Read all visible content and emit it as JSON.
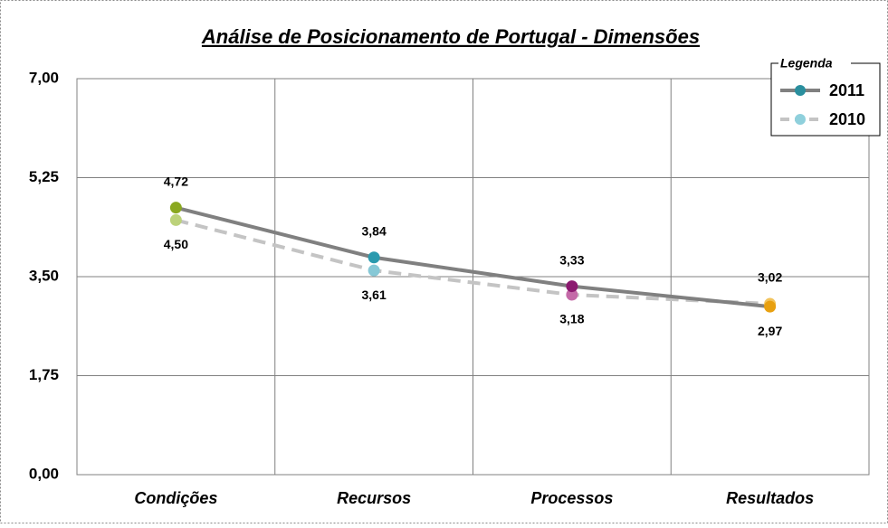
{
  "chart_data": {
    "type": "line",
    "title": "Análise de Posicionamento de Portugal - Dimensões",
    "categories": [
      "Condições",
      "Recursos",
      "Processos",
      "Resultados"
    ],
    "series": [
      {
        "name": "2011",
        "color": "#808080",
        "dash": false,
        "marker_color": "#2a8f9e",
        "point_colors": [
          "#8aa820",
          "#2a9aae",
          "#8c1a70",
          "#e8a010"
        ],
        "values": [
          4.72,
          3.84,
          3.33,
          2.97
        ],
        "value_labels": [
          "4,72",
          "3,84",
          "3,33",
          "2,97"
        ]
      },
      {
        "name": "2010",
        "color": "#c4c4c4",
        "dash": true,
        "marker_color": "#8fd0dc",
        "point_colors": [
          "#bcd27a",
          "#86c8d6",
          "#c46aa8",
          "#f2c45c"
        ],
        "values": [
          4.5,
          3.61,
          3.18,
          3.02
        ],
        "value_labels": [
          "4,50",
          "3,61",
          "3,18",
          "3,02"
        ]
      }
    ],
    "ylim": [
      0,
      7
    ],
    "yticks": [
      {
        "value": 0,
        "label": "0,00"
      },
      {
        "value": 1.75,
        "label": "1,75"
      },
      {
        "value": 3.5,
        "label": "3,50"
      },
      {
        "value": 5.25,
        "label": "5,25"
      },
      {
        "value": 7,
        "label": "7,00"
      }
    ],
    "grid": true,
    "legend": {
      "title": "Legenda",
      "position": "top-right"
    }
  }
}
